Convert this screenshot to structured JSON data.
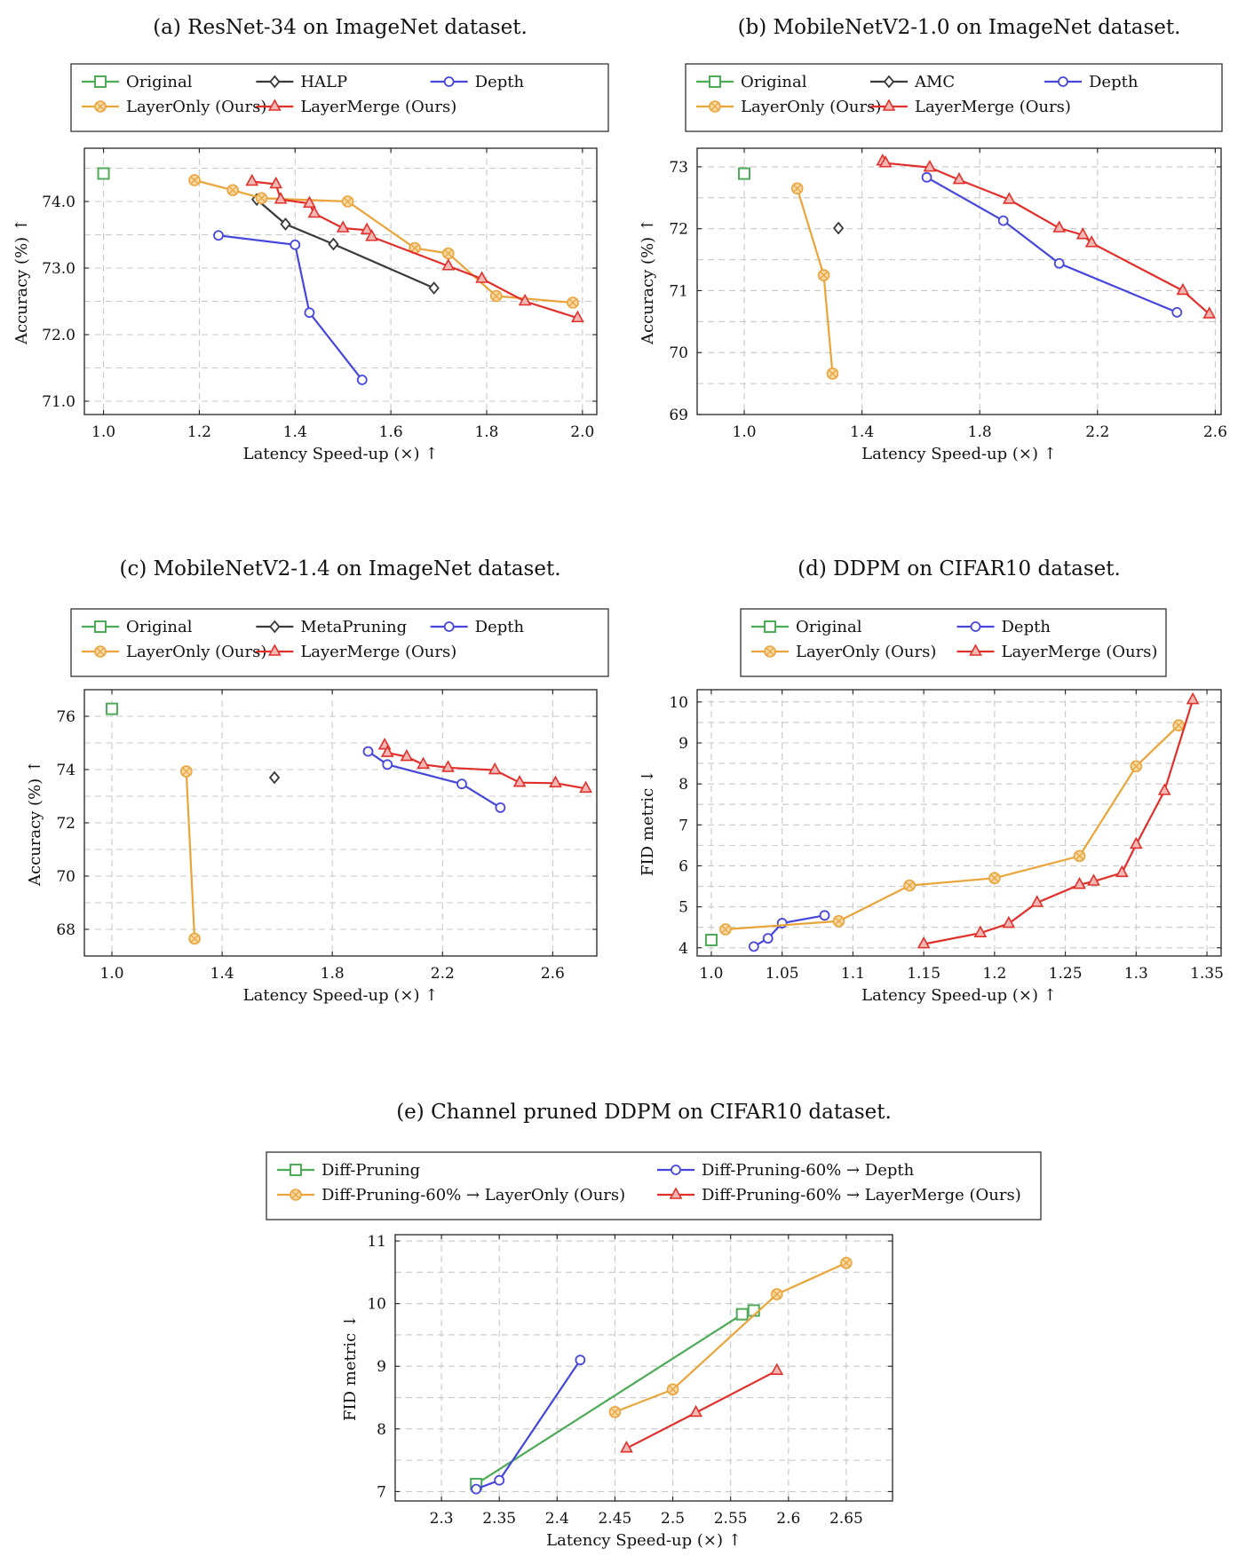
{
  "colors": {
    "Original": "#4daa57",
    "Diff-Pruning": "#4daa57",
    "baseline": "#3a3a3a",
    "Depth": "#4646dc",
    "LayerOnly": "#eaa43a",
    "LayerMerge": "#e0302b"
  },
  "chart_data": [
    {
      "type": "line",
      "title": "(a) ResNet-34 on ImageNet dataset.",
      "xlabel": "Latency Speed-up (×) ↑",
      "ylabel": "Accuracy (%) ↑",
      "xlim": [
        0.96,
        2.03
      ],
      "ylim": [
        70.8,
        74.8
      ],
      "xticks": [
        1.0,
        1.2,
        1.4,
        1.6,
        1.8,
        2.0
      ],
      "xtick_labels": [
        "1.0",
        "1.2",
        "1.4",
        "1.6",
        "1.8",
        "2.0"
      ],
      "yticks": [
        71.0,
        72.0,
        73.0,
        74.0
      ],
      "ytick_labels": [
        "71.0",
        "72.0",
        "73.0",
        "74.0"
      ],
      "grid": true,
      "legend_columns": 3,
      "series": [
        {
          "name": "Original",
          "marker": "square",
          "x": [
            1.0
          ],
          "y": [
            74.42
          ]
        },
        {
          "name": "HALP",
          "marker": "diamond",
          "x": [
            1.32,
            1.38,
            1.48,
            1.69
          ],
          "y": [
            74.03,
            73.66,
            73.36,
            72.7
          ]
        },
        {
          "name": "Depth",
          "marker": "circle",
          "x": [
            1.24,
            1.4,
            1.43,
            1.54
          ],
          "y": [
            73.49,
            73.35,
            72.33,
            71.32
          ]
        },
        {
          "name": "LayerOnly (Ours)",
          "marker": "otimes",
          "x": [
            1.19,
            1.27,
            1.33,
            1.51,
            1.65,
            1.72,
            1.82,
            1.98
          ],
          "y": [
            74.32,
            74.17,
            74.05,
            74.0,
            73.3,
            73.22,
            72.58,
            72.48
          ]
        },
        {
          "name": "LayerMerge (Ours)",
          "marker": "triangle",
          "x": [
            1.31,
            1.36,
            1.37,
            1.43,
            1.44,
            1.5,
            1.55,
            1.56,
            1.72,
            1.79,
            1.88,
            1.99
          ],
          "y": [
            74.3,
            74.26,
            74.03,
            73.97,
            73.82,
            73.6,
            73.57,
            73.47,
            73.03,
            72.84,
            72.5,
            72.25
          ]
        }
      ]
    },
    {
      "type": "line",
      "title": "(b) MobileNetV2-1.0 on ImageNet dataset.",
      "xlabel": "Latency Speed-up (×) ↑",
      "ylabel": "Accuracy (%) ↑",
      "xlim": [
        0.84,
        2.62
      ],
      "ylim": [
        69.0,
        73.3
      ],
      "xticks": [
        1.0,
        1.4,
        1.8,
        2.2,
        2.6
      ],
      "xtick_labels": [
        "1.0",
        "1.4",
        "1.8",
        "2.2",
        "2.6"
      ],
      "yticks": [
        69,
        70,
        71,
        72,
        73
      ],
      "ytick_labels": [
        "69",
        "70",
        "71",
        "72",
        "73"
      ],
      "grid": true,
      "legend_columns": 3,
      "series": [
        {
          "name": "Original",
          "marker": "square",
          "x": [
            1.0
          ],
          "y": [
            72.89
          ]
        },
        {
          "name": "AMC",
          "marker": "diamond",
          "x": [
            1.32
          ],
          "y": [
            72.01
          ]
        },
        {
          "name": "Depth",
          "marker": "circle",
          "x": [
            1.62,
            1.88,
            2.07,
            2.47
          ],
          "y": [
            72.83,
            72.13,
            71.44,
            70.65
          ]
        },
        {
          "name": "LayerOnly (Ours)",
          "marker": "otimes",
          "x": [
            1.18,
            1.27,
            1.3
          ],
          "y": [
            72.65,
            71.25,
            69.66
          ]
        },
        {
          "name": "LayerMerge (Ours)",
          "marker": "triangle",
          "x": [
            1.47,
            1.48,
            1.63,
            1.73,
            1.9,
            2.07,
            2.15,
            2.18,
            2.49,
            2.58
          ],
          "y": [
            73.09,
            73.06,
            72.99,
            72.79,
            72.47,
            72.01,
            71.9,
            71.77,
            71.0,
            70.62
          ]
        }
      ]
    },
    {
      "type": "line",
      "title": "(c) MobileNetV2-1.4 on ImageNet dataset.",
      "xlabel": "Latency Speed-up (×) ↑",
      "ylabel": "Accuracy (%) ↑",
      "xlim": [
        0.9,
        2.76
      ],
      "ylim": [
        67.0,
        77.0
      ],
      "xticks": [
        1.0,
        1.4,
        1.8,
        2.2,
        2.6
      ],
      "xtick_labels": [
        "1.0",
        "1.4",
        "1.8",
        "2.2",
        "2.6"
      ],
      "yticks": [
        68,
        70,
        72,
        74,
        76
      ],
      "ytick_labels": [
        "68",
        "70",
        "72",
        "74",
        "76"
      ],
      "grid": true,
      "legend_columns": 3,
      "series": [
        {
          "name": "Original",
          "marker": "square",
          "x": [
            1.0
          ],
          "y": [
            76.28
          ]
        },
        {
          "name": "MetaPruning",
          "marker": "diamond",
          "x": [
            1.59
          ],
          "y": [
            73.7
          ]
        },
        {
          "name": "Depth",
          "marker": "circle",
          "x": [
            1.93,
            2.0,
            2.27,
            2.41
          ],
          "y": [
            74.68,
            74.19,
            73.46,
            72.57
          ]
        },
        {
          "name": "LayerOnly (Ours)",
          "marker": "otimes",
          "x": [
            1.27,
            1.3
          ],
          "y": [
            73.93,
            67.65
          ]
        },
        {
          "name": "LayerMerge (Ours)",
          "marker": "triangle",
          "x": [
            1.99,
            2.0,
            2.07,
            2.13,
            2.22,
            2.39,
            2.48,
            2.61,
            2.72
          ],
          "y": [
            74.91,
            74.63,
            74.48,
            74.19,
            74.07,
            73.98,
            73.51,
            73.49,
            73.29
          ]
        }
      ]
    },
    {
      "type": "line",
      "title": "(d) DDPM on CIFAR10 dataset.",
      "xlabel": "Latency Speed-up (×) ↑",
      "ylabel": "FID metric ↓",
      "xlim": [
        0.99,
        1.36
      ],
      "ylim": [
        3.8,
        10.3
      ],
      "xticks": [
        1.0,
        1.05,
        1.1,
        1.15,
        1.2,
        1.25,
        1.3,
        1.35
      ],
      "xtick_labels": [
        "1.0",
        "1.05",
        "1.1",
        "1.15",
        "1.2",
        "1.25",
        "1.3",
        "1.35"
      ],
      "yticks": [
        4,
        5,
        6,
        7,
        8,
        9,
        10
      ],
      "ytick_labels": [
        "4",
        "5",
        "6",
        "7",
        "8",
        "9",
        "10"
      ],
      "grid": true,
      "legend_columns": 2,
      "series": [
        {
          "name": "Original",
          "marker": "square",
          "x": [
            1.0
          ],
          "y": [
            4.19
          ]
        },
        {
          "name": "Depth",
          "marker": "circle",
          "x": [
            1.03,
            1.04,
            1.05,
            1.08
          ],
          "y": [
            4.03,
            4.23,
            4.6,
            4.79
          ]
        },
        {
          "name": "LayerOnly (Ours)",
          "marker": "otimes",
          "x": [
            1.01,
            1.09,
            1.14,
            1.2,
            1.26,
            1.3,
            1.33
          ],
          "y": [
            4.45,
            4.65,
            5.52,
            5.7,
            6.24,
            8.43,
            9.43
          ]
        },
        {
          "name": "LayerMerge (Ours)",
          "marker": "triangle",
          "x": [
            1.15,
            1.19,
            1.21,
            1.23,
            1.26,
            1.27,
            1.29,
            1.3,
            1.32,
            1.34
          ],
          "y": [
            4.09,
            4.36,
            4.59,
            5.1,
            5.54,
            5.62,
            5.83,
            6.52,
            7.83,
            10.05
          ]
        }
      ]
    },
    {
      "type": "line",
      "title": "(e) Channel pruned DDPM on CIFAR10 dataset.",
      "xlabel": "Latency Speed-up (×) ↑",
      "ylabel": "FID metric ↓",
      "xlim": [
        2.26,
        2.69
      ],
      "ylim": [
        6.85,
        11.1
      ],
      "xticks": [
        2.3,
        2.35,
        2.4,
        2.45,
        2.5,
        2.55,
        2.6,
        2.65
      ],
      "xtick_labels": [
        "2.3",
        "2.35",
        "2.4",
        "2.45",
        "2.5",
        "2.55",
        "2.6",
        "2.65"
      ],
      "yticks": [
        7,
        8,
        9,
        10,
        11
      ],
      "ytick_labels": [
        "7",
        "8",
        "9",
        "10",
        "11"
      ],
      "grid": true,
      "legend_columns": 2,
      "series": [
        {
          "name": "Diff-Pruning",
          "marker": "square",
          "x": [
            2.33,
            2.56,
            2.57
          ],
          "y": [
            7.12,
            9.83,
            9.89
          ]
        },
        {
          "name": "Diff-Pruning-60% → Depth",
          "marker": "circle",
          "x": [
            2.33,
            2.35,
            2.42
          ],
          "y": [
            7.04,
            7.18,
            9.1
          ]
        },
        {
          "name": "Diff-Pruning-60% → LayerOnly (Ours)",
          "marker": "otimes",
          "x": [
            2.45,
            2.5,
            2.59,
            2.65
          ],
          "y": [
            8.27,
            8.63,
            10.15,
            10.65
          ]
        },
        {
          "name": "Diff-Pruning-60% → LayerMerge (Ours)",
          "marker": "triangle",
          "x": [
            2.46,
            2.52,
            2.59
          ],
          "y": [
            7.69,
            8.26,
            8.93
          ]
        }
      ]
    }
  ]
}
